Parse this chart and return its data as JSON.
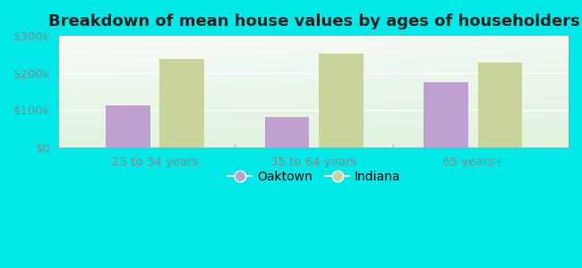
{
  "title": "Breakdown of mean house values by ages of householders",
  "categories": [
    "25 to 34 years",
    "35 to 64 years",
    "65 years+"
  ],
  "oaktown_values": [
    113000,
    82000,
    175000
  ],
  "indiana_values": [
    238000,
    253000,
    228000
  ],
  "oaktown_color": "#c0a0d0",
  "indiana_color": "#c8d49c",
  "background_outer": "#00e8e8",
  "ylim": [
    0,
    300000
  ],
  "yticks": [
    0,
    100000,
    200000,
    300000
  ],
  "ytick_labels": [
    "$0",
    "$100k",
    "$200k",
    "$300k"
  ],
  "bar_width": 0.28,
  "legend_labels": [
    "Oaktown",
    "Indiana"
  ],
  "title_fontsize": 13,
  "tick_fontsize": 9.5,
  "legend_fontsize": 10
}
